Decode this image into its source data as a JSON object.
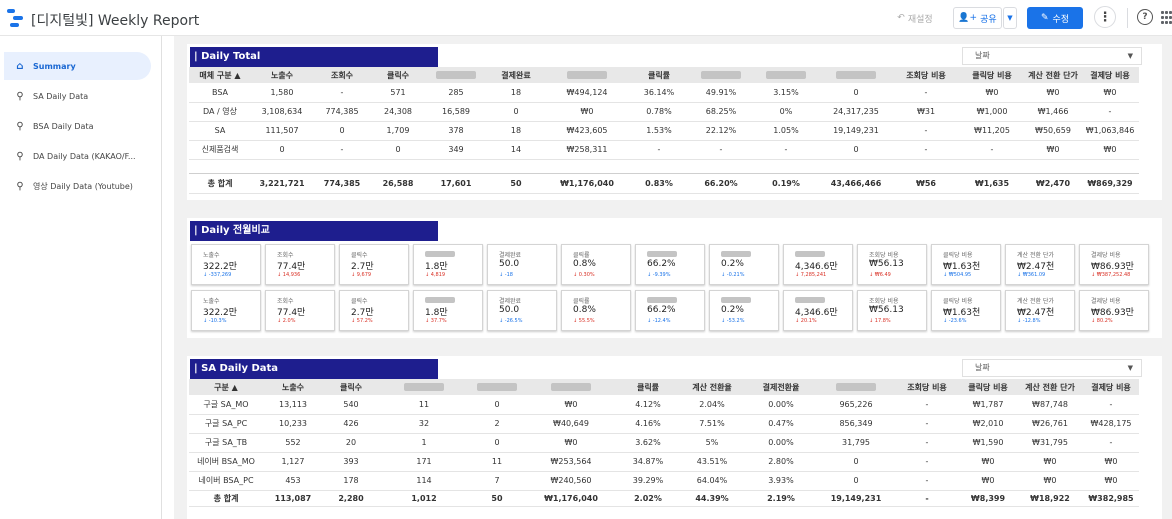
{
  "header": {
    "title": "[디지털빛] Weekly Report",
    "reload": "재설정",
    "share": "공유",
    "edit": "수정"
  },
  "sidebar": {
    "items": [
      {
        "label": "Summary",
        "icon": "home-icon"
      },
      {
        "label": "SA Daily Data",
        "icon": "search-icon"
      },
      {
        "label": "BSA Daily Data",
        "icon": "search-icon"
      },
      {
        "label": "DA Daily Data (KAKAO/F...",
        "icon": "search-icon"
      },
      {
        "label": "영상 Daily Data (Youtube)",
        "icon": "search-icon"
      }
    ]
  },
  "daily_total": {
    "title": "| Daily  Total",
    "date_label": "날짜",
    "columns": [
      "매체 구분 ▲",
      "노출수",
      "조회수",
      "클릭수",
      "",
      "결제완료",
      "",
      "클릭률",
      "",
      "",
      "",
      "조회당 비용",
      "클릭당 비용",
      "계산 전환 단가",
      "결제당 비용"
    ],
    "rows": [
      [
        "BSA",
        "1,580",
        "-",
        "571",
        "285",
        "18",
        "₩494,124",
        "36.14%",
        "49.91%",
        "3.15%",
        "0",
        "-",
        "₩0",
        "₩0",
        "₩0"
      ],
      [
        "DA / 영상",
        "3,108,634",
        "774,385",
        "24,308",
        "16,589",
        "0",
        "₩0",
        "0.78%",
        "68.25%",
        "0%",
        "24,317,235",
        "₩31",
        "₩1,000",
        "₩1,466",
        "-"
      ],
      [
        "SA",
        "111,507",
        "0",
        "1,709",
        "378",
        "18",
        "₩423,605",
        "1.53%",
        "22.12%",
        "1.05%",
        "19,149,231",
        "-",
        "₩11,205",
        "₩50,659",
        "₩1,063,846"
      ],
      [
        "신제품검색",
        "0",
        "-",
        "0",
        "349",
        "14",
        "₩258,311",
        "-",
        "-",
        "-",
        "0",
        "-",
        "-",
        "₩0",
        "₩0"
      ]
    ],
    "total": [
      "총 합계",
      "3,221,721",
      "774,385",
      "26,588",
      "17,601",
      "50",
      "₩1,176,040",
      "0.83%",
      "66.20%",
      "0.19%",
      "43,466,466",
      "₩56",
      "₩1,635",
      "₩2,470",
      "₩869,329"
    ]
  },
  "comparison": {
    "title": "| Daily  전월비교",
    "row1": [
      {
        "label": "노출수",
        "value": "322.2만",
        "delta": "↓ -337,269",
        "dir": "up"
      },
      {
        "label": "조회수",
        "value": "77.4만",
        "delta": "↓ 14,936",
        "dir": "down"
      },
      {
        "label": "클릭수",
        "value": "2.7만",
        "delta": "↓ 9,679",
        "dir": "down"
      },
      {
        "label": "",
        "value": "1.8만",
        "delta": "↓ 4,819",
        "dir": "down"
      },
      {
        "label": "결제완료",
        "value": "50.0",
        "delta": "↓ -18",
        "dir": "up"
      },
      {
        "label": "클릭률",
        "value": "0.8%",
        "delta": "↓ 0.30%",
        "dir": "down"
      },
      {
        "label": "",
        "value": "66.2%",
        "delta": "↓ -9.39%",
        "dir": "up"
      },
      {
        "label": "",
        "value": "0.2%",
        "delta": "↓ -0.21%",
        "dir": "up"
      },
      {
        "label": "",
        "value": "4,346.6만",
        "delta": "↓ 7,285,241",
        "dir": "down"
      },
      {
        "label": "조회당 비용",
        "value": "₩56.13",
        "delta": "↓ ₩6.49",
        "dir": "down"
      },
      {
        "label": "클릭당 비용",
        "value": "₩1.63천",
        "delta": "↓ ₩504.95",
        "dir": "up"
      },
      {
        "label": "계산 전환 단가",
        "value": "₩2.47천",
        "delta": "↓ ₩361.09",
        "dir": "up"
      },
      {
        "label": "결제당 비용",
        "value": "₩86.93만",
        "delta": "↓ ₩387,252.48",
        "dir": "down"
      }
    ],
    "row2": [
      {
        "label": "노출수",
        "value": "322.2만",
        "delta": "↓ -10.3%",
        "dir": "up"
      },
      {
        "label": "조회수",
        "value": "77.4만",
        "delta": "↓ 2.0%",
        "dir": "down"
      },
      {
        "label": "클릭수",
        "value": "2.7만",
        "delta": "↓ 57.2%",
        "dir": "down"
      },
      {
        "label": "",
        "value": "1.8만",
        "delta": "↓ 37.7%",
        "dir": "down"
      },
      {
        "label": "결제완료",
        "value": "50.0",
        "delta": "↓ -26.5%",
        "dir": "up"
      },
      {
        "label": "클릭률",
        "value": "0.8%",
        "delta": "↓ 55.5%",
        "dir": "down"
      },
      {
        "label": "",
        "value": "66.2%",
        "delta": "↓ -12.4%",
        "dir": "up"
      },
      {
        "label": "",
        "value": "0.2%",
        "delta": "↓ -53.2%",
        "dir": "up"
      },
      {
        "label": "",
        "value": "4,346.6만",
        "delta": "↓ 20.1%",
        "dir": "down"
      },
      {
        "label": "조회당 비용",
        "value": "₩56.13",
        "delta": "↓ 17.8%",
        "dir": "down"
      },
      {
        "label": "클릭당 비용",
        "value": "₩1.63천",
        "delta": "↓ -23.6%",
        "dir": "up"
      },
      {
        "label": "계산 전환 단가",
        "value": "₩2.47천",
        "delta": "↓ -12.8%",
        "dir": "up"
      },
      {
        "label": "결제당 비용",
        "value": "₩86.93만",
        "delta": "↓ 80.2%",
        "dir": "down"
      }
    ]
  },
  "sa_daily": {
    "title": "| SA Daily Data",
    "date_label": "날짜",
    "columns": [
      "구분 ▲",
      "노출수",
      "클릭수",
      "",
      "",
      "",
      "클릭률",
      "계산 전환율",
      "결제전환율",
      "",
      "조회당 비용",
      "클릭당 비용",
      "계산 전환 단가",
      "결제당 비용"
    ],
    "rows": [
      [
        "구글 SA_MO",
        "13,113",
        "540",
        "11",
        "0",
        "₩0",
        "4.12%",
        "2.04%",
        "0.00%",
        "965,226",
        "-",
        "₩1,787",
        "₩87,748",
        "-"
      ],
      [
        "구글 SA_PC",
        "10,233",
        "426",
        "32",
        "2",
        "₩40,649",
        "4.16%",
        "7.51%",
        "0.47%",
        "856,349",
        "-",
        "₩2,010",
        "₩26,761",
        "₩428,175"
      ],
      [
        "구글 SA_TB",
        "552",
        "20",
        "1",
        "0",
        "₩0",
        "3.62%",
        "5%",
        "0.00%",
        "31,795",
        "-",
        "₩1,590",
        "₩31,795",
        "-"
      ],
      [
        "네이버 BSA_MO",
        "1,127",
        "393",
        "171",
        "11",
        "₩253,564",
        "34.87%",
        "43.51%",
        "2.80%",
        "0",
        "-",
        "₩0",
        "₩0",
        "₩0"
      ],
      [
        "네이버 BSA_PC",
        "453",
        "178",
        "114",
        "7",
        "₩240,560",
        "39.29%",
        "64.04%",
        "3.93%",
        "0",
        "-",
        "₩0",
        "₩0",
        "₩0"
      ]
    ],
    "total": [
      "총 합계",
      "113,087",
      "2,280",
      "1,012",
      "50",
      "₩1,176,040",
      "2.02%",
      "44.39%",
      "2.19%",
      "19,149,231",
      "-",
      "₩8,399",
      "₩18,922",
      "₩382,985"
    ]
  }
}
